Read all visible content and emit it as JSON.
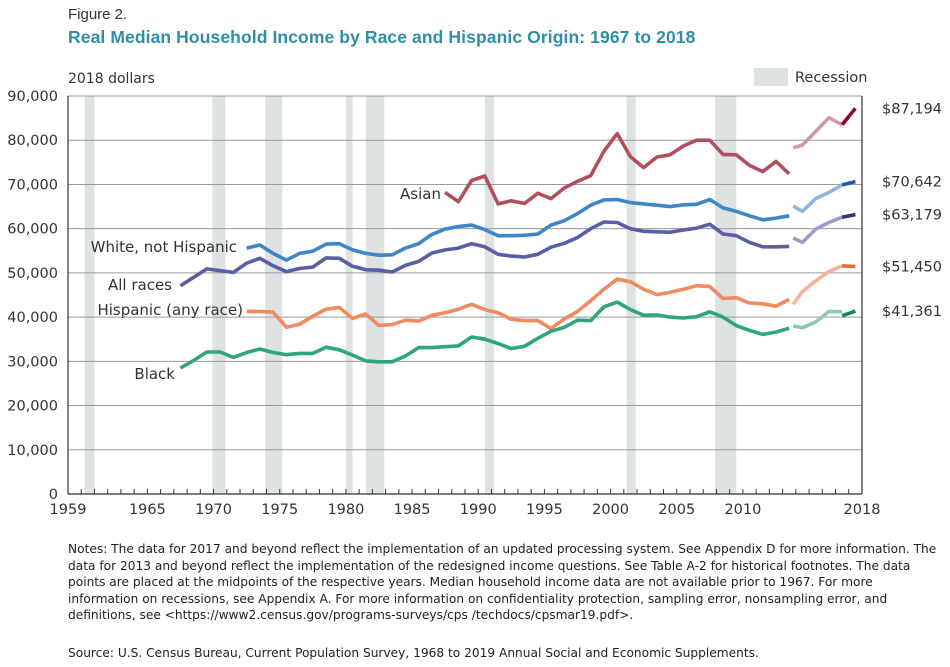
{
  "header": {
    "figure_label": "Figure 2.",
    "title": "Real Median Household Income by Race and Hispanic Origin: 1967 to 2018"
  },
  "notes": "Notes: The data for 2017 and beyond reflect the implementation of an updated processing system. See Appendix D for more information. The data for 2013 and beyond reflect the implementation of the redesigned income questions. See Table A-2 for historical footnotes. The data points are placed at the midpoints of the respective years. Median household income data are not available prior to 1967. For more information on recessions, see Appendix A. For more information on confidentiality protection, sampling error, nonsampling error, and definitions, see <https://www2.census.gov/programs-surveys/cps /techdocs/cpsmar19.pdf>.",
  "source": "Source: U.S. Census Bureau, Current Population Survey, 1968 to 2019 Annual Social and Economic Supplements.",
  "chart_data": {
    "type": "line",
    "title": "Real Median Household Income by Race and Hispanic Origin: 1967 to 2018",
    "ylabel": "2018 dollars",
    "xlabel": "",
    "ylim": [
      0,
      90000
    ],
    "xlim": [
      1959,
      2018
    ],
    "grid": true,
    "yticks": [
      0,
      10000,
      20000,
      30000,
      40000,
      50000,
      60000,
      70000,
      80000,
      90000
    ],
    "ytick_labels": [
      "0",
      "10,000",
      "20,000",
      "30,000",
      "40,000",
      "50,000",
      "60,000",
      "70,000",
      "80,000",
      "90,000"
    ],
    "xticks": [
      1959,
      1965,
      1970,
      1975,
      1980,
      1985,
      1990,
      1995,
      2000,
      2005,
      2010,
      2018
    ],
    "xtick_labels": [
      "1959",
      "1965",
      "1970",
      "1975",
      "1980",
      "1985",
      "1990",
      "1995",
      "2000",
      "2005",
      "2010",
      "2018"
    ],
    "legend": {
      "label": "Recession",
      "color": "#dde3e3",
      "placement": "top-right"
    },
    "recessions": [
      [
        1960.25,
        1961.0
      ],
      [
        1969.9,
        1970.9
      ],
      [
        1973.9,
        1975.2
      ],
      [
        1980.0,
        1980.5
      ],
      [
        1981.5,
        1982.9
      ],
      [
        1990.5,
        1991.2
      ],
      [
        2001.2,
        2001.9
      ],
      [
        2007.9,
        2009.5
      ]
    ],
    "series": [
      {
        "name": "Asian",
        "label": "Asian",
        "color": "#b04f5e",
        "color_redesign": "#d19aa3",
        "color_updated": "#8c0a2e",
        "end_label": "$87,194",
        "segments": [
          {
            "x": [
              1987,
              1988,
              1989,
              1990,
              1991,
              1992,
              1993,
              1994,
              1995,
              1996,
              1997,
              1998,
              1999,
              2000,
              2001,
              2002,
              2003,
              2004,
              2005,
              2006,
              2007,
              2008,
              2009,
              2010,
              2011,
              2012,
              2013
            ],
            "values": [
              68200,
              66100,
              70900,
              71900,
              65600,
              66300,
              65700,
              68000,
              66800,
              69200,
              70700,
              72000,
              77500,
              81500,
              76300,
              73800,
              76200,
              76700,
              78700,
              80000,
              80000,
              76800,
              76700,
              74300,
              72900,
              75200,
              72400
            ],
            "style": "original"
          },
          {
            "x": [
              2013,
              2014,
              2015,
              2016,
              2017
            ],
            "values": [
              78300,
              78900,
              82000,
              85100,
              83500
            ],
            "style": "redesign"
          },
          {
            "x": [
              2017,
              2018
            ],
            "values": [
              83500,
              87194
            ],
            "style": "updated"
          }
        ]
      },
      {
        "name": "White, not Hispanic",
        "label": "White, not Hispanic",
        "color": "#3f86c8",
        "color_redesign": "#8fb7de",
        "color_updated": "#1d5fa3",
        "end_label": "$70,642",
        "segments": [
          {
            "x": [
              1972,
              1973,
              1974,
              1975,
              1976,
              1977,
              1978,
              1979,
              1980,
              1981,
              1982,
              1983,
              1984,
              1985,
              1986,
              1987,
              1988,
              1989,
              1990,
              1991,
              1992,
              1993,
              1994,
              1995,
              1996,
              1997,
              1998,
              1999,
              2000,
              2001,
              2002,
              2003,
              2004,
              2005,
              2006,
              2007,
              2008,
              2009,
              2010,
              2011,
              2012,
              2013
            ],
            "values": [
              55600,
              56300,
              54400,
              52900,
              54400,
              54900,
              56500,
              56600,
              55200,
              54400,
              54000,
              54100,
              55600,
              56600,
              58700,
              59900,
              60500,
              60800,
              59800,
              58400,
              58400,
              58500,
              58800,
              60800,
              61800,
              63400,
              65300,
              66500,
              66600,
              65900,
              65600,
              65300,
              65000,
              65400,
              65500,
              66600,
              64700,
              63900,
              62900,
              62000,
              62400,
              62900
            ],
            "style": "original"
          },
          {
            "x": [
              2013,
              2014,
              2015,
              2016,
              2017
            ],
            "values": [
              65100,
              63900,
              66800,
              68200,
              69900
            ],
            "style": "redesign"
          },
          {
            "x": [
              2017,
              2018
            ],
            "values": [
              69900,
              70642
            ],
            "style": "updated"
          }
        ]
      },
      {
        "name": "All races",
        "label": "All races",
        "color": "#5a5ea4",
        "color_redesign": "#9a9dc8",
        "color_updated": "#2e3580",
        "end_label": "$63,179",
        "segments": [
          {
            "x": [
              1967,
              1968,
              1969,
              1970,
              1971,
              1972,
              1973,
              1974,
              1975,
              1976,
              1977,
              1978,
              1979,
              1980,
              1981,
              1982,
              1983,
              1984,
              1985,
              1986,
              1987,
              1988,
              1989,
              1990,
              1991,
              1992,
              1993,
              1994,
              1995,
              1996,
              1997,
              1998,
              1999,
              2000,
              2001,
              2002,
              2003,
              2004,
              2005,
              2006,
              2007,
              2008,
              2009,
              2010,
              2011,
              2012,
              2013
            ],
            "values": [
              47100,
              49000,
              50900,
              50500,
              50100,
              52200,
              53300,
              51600,
              50300,
              51000,
              51300,
              53400,
              53300,
              51500,
              50700,
              50600,
              50200,
              51700,
              52600,
              54500,
              55200,
              55600,
              56600,
              55900,
              54200,
              53800,
              53600,
              54200,
              55800,
              56700,
              58000,
              60000,
              61500,
              61400,
              60000,
              59400,
              59300,
              59200,
              59700,
              60100,
              61000,
              58800,
              58400,
              56900,
              55900,
              55900,
              56000
            ],
            "style": "original"
          },
          {
            "x": [
              2013,
              2014,
              2015,
              2016,
              2017
            ],
            "values": [
              57900,
              56900,
              59900,
              61400,
              62600
            ],
            "style": "redesign"
          },
          {
            "x": [
              2017,
              2018
            ],
            "values": [
              62600,
              63179
            ],
            "style": "updated"
          }
        ]
      },
      {
        "name": "Hispanic (any race)",
        "label": "Hispanic (any race)",
        "color": "#f08a5f",
        "color_redesign": "#f5b497",
        "color_updated": "#ec6a3a",
        "end_label": "$51,450",
        "segments": [
          {
            "x": [
              1972,
              1973,
              1974,
              1975,
              1976,
              1977,
              1978,
              1979,
              1980,
              1981,
              1982,
              1983,
              1984,
              1985,
              1986,
              1987,
              1988,
              1989,
              1990,
              1991,
              1992,
              1993,
              1994,
              1995,
              1996,
              1997,
              1998,
              1999,
              2000,
              2001,
              2002,
              2003,
              2004,
              2005,
              2006,
              2007,
              2008,
              2009,
              2010,
              2011,
              2012,
              2013
            ],
            "values": [
              41300,
              41300,
              41100,
              37700,
              38400,
              40200,
              41800,
              42200,
              39700,
              40700,
              38100,
              38300,
              39300,
              39100,
              40400,
              41000,
              41800,
              42900,
              41700,
              41000,
              39500,
              39200,
              39200,
              37400,
              39600,
              41300,
              43700,
              46300,
              48600,
              48000,
              46300,
              45100,
              45600,
              46300,
              47100,
              46900,
              44200,
              44400,
              43200,
              43000,
              42500,
              44000
            ],
            "style": "original"
          },
          {
            "x": [
              2013,
              2014,
              2015,
              2016,
              2017
            ],
            "values": [
              42900,
              45800,
              48200,
              50300,
              51600
            ],
            "style": "redesign"
          },
          {
            "x": [
              2017,
              2018
            ],
            "values": [
              51600,
              51450
            ],
            "style": "updated"
          }
        ]
      },
      {
        "name": "Black",
        "label": "Black",
        "color": "#2fa57a",
        "color_redesign": "#8cc9b1",
        "color_updated": "#0e8a58",
        "end_label": "$41,361",
        "segments": [
          {
            "x": [
              1967,
              1968,
              1969,
              1970,
              1971,
              1972,
              1973,
              1974,
              1975,
              1976,
              1977,
              1978,
              1979,
              1980,
              1981,
              1982,
              1983,
              1984,
              1985,
              1986,
              1987,
              1988,
              1989,
              1990,
              1991,
              1992,
              1993,
              1994,
              1995,
              1996,
              1997,
              1998,
              1999,
              2000,
              2001,
              2002,
              2003,
              2004,
              2005,
              2006,
              2007,
              2008,
              2009,
              2010,
              2011,
              2012,
              2013
            ],
            "values": [
              28500,
              30200,
              32100,
              32100,
              30900,
              32000,
              32800,
              32000,
              31500,
              31800,
              31800,
              33200,
              32600,
              31400,
              30100,
              29900,
              29900,
              31200,
              33100,
              33100,
              33300,
              33500,
              35500,
              35000,
              34000,
              32900,
              33400,
              35200,
              36800,
              37700,
              39300,
              39200,
              42300,
              43400,
              41700,
              40400,
              40500,
              40000,
              39800,
              40100,
              41200,
              40000,
              38100,
              37000,
              36100,
              36600,
              37500
            ],
            "style": "original"
          },
          {
            "x": [
              2013,
              2014,
              2015,
              2016,
              2017
            ],
            "values": [
              38000,
              37600,
              38900,
              41300,
              41200
            ],
            "style": "redesign"
          },
          {
            "x": [
              2017,
              2018
            ],
            "values": [
              40300,
              41361
            ],
            "style": "updated"
          }
        ]
      }
    ]
  }
}
